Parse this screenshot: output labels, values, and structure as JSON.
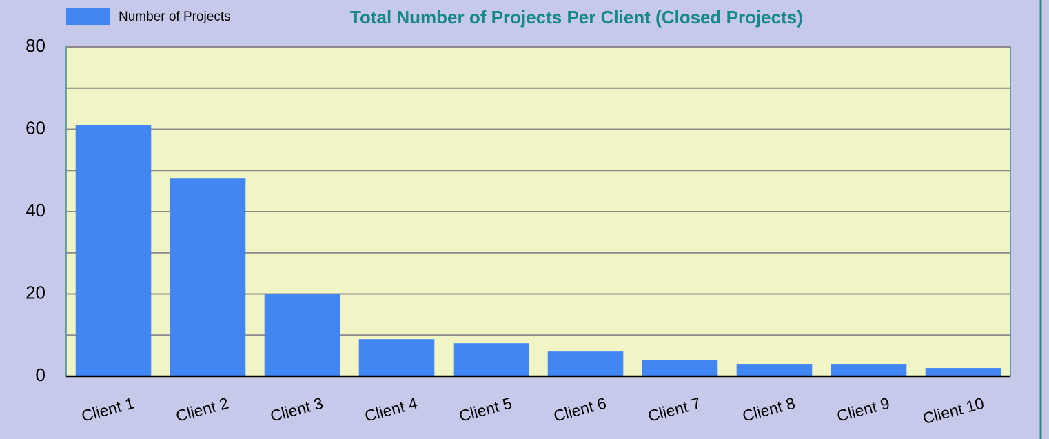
{
  "chart_data": {
    "type": "bar",
    "title": "Total Number of Projects Per Client (Closed Projects)",
    "series": [
      {
        "name": "Number of Projects",
        "color": "#4286f4",
        "values": [
          61,
          48,
          20,
          9,
          8,
          6,
          4,
          3,
          3,
          2
        ]
      }
    ],
    "categories": [
      "Client 1",
      "Client 2",
      "Client 3",
      "Client 4",
      "Client 5",
      "Client 6",
      "Client 7",
      "Client 8",
      "Client 9",
      "Client 10"
    ],
    "ylim": [
      0,
      80
    ],
    "yticks": [
      0,
      20,
      40,
      60,
      80
    ],
    "grid": true
  }
}
